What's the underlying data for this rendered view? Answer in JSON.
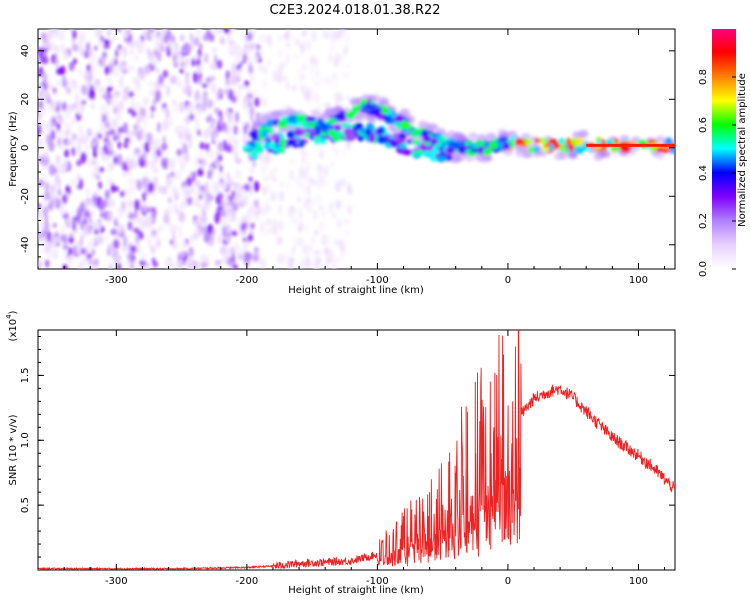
{
  "title": "C2E3.2024.018.01.38.R22",
  "chart_data": [
    {
      "type": "heatmap",
      "xlabel": "Height of straight line (km)",
      "ylabel": "Frequency (Hz)",
      "xlim": [
        -360,
        128
      ],
      "ylim": [
        -50,
        49
      ],
      "x_ticks": [
        "-300",
        "-200",
        "-100",
        "0",
        "100"
      ],
      "y_ticks": [
        "-40",
        "-20",
        "0",
        "20",
        "40"
      ],
      "colorbar": {
        "label": "Normalized spectral amplitude",
        "range": [
          0,
          1
        ],
        "ticks": [
          "0.0",
          "0.2",
          "0.4",
          "0.6",
          "0.8"
        ],
        "colormap": [
          "#ffffff",
          "#e8d0ff",
          "#b080ff",
          "#8000ff",
          "#0000ff",
          "#00ffff",
          "#00ff00",
          "#ffff00",
          "#ff8000",
          "#ff0000",
          "#ff0080"
        ]
      },
      "ridge_track": {
        "x": [
          -195,
          -185,
          -170,
          -155,
          -140,
          -125,
          -110,
          -100,
          -90,
          -80,
          -70,
          -60,
          -50,
          -40,
          -30,
          -20,
          -10,
          0,
          20,
          40,
          60,
          80,
          100,
          128
        ],
        "y": [
          4,
          8,
          10,
          11,
          9,
          14,
          17,
          16,
          13,
          10,
          7,
          4,
          2,
          0,
          0,
          0,
          1,
          2,
          1,
          1,
          1,
          1,
          1,
          1
        ]
      },
      "lower_track": {
        "x": [
          -200,
          -185,
          -170,
          -150,
          -130,
          -115,
          -100,
          -85,
          -70,
          -55,
          -45
        ],
        "y": [
          -1,
          0,
          3,
          5,
          6,
          7,
          6,
          2,
          0,
          -2,
          -3
        ]
      }
    },
    {
      "type": "line",
      "xlabel": "Height of straight line (km)",
      "ylabel": "SNR (10 * v/v)",
      "y_exponent": "(x10",
      "y_exponent_power": "4",
      "y_exponent_close": ")",
      "xlim": [
        -360,
        128
      ],
      "ylim": [
        0,
        1.85
      ],
      "x_ticks": [
        "-300",
        "-200",
        "-100",
        "0",
        "100"
      ],
      "y_ticks": [
        "0.5",
        "1.0",
        "1.5"
      ],
      "series": [
        {
          "color": "#ee2222",
          "x": [
            -360,
            -250,
            -200,
            -180,
            -160,
            -140,
            -120,
            -100,
            -90,
            -80,
            -70,
            -60,
            -50,
            -40,
            -30,
            -20,
            -10,
            0,
            10,
            20,
            30,
            40,
            50,
            60,
            70,
            80,
            90,
            100,
            110,
            120,
            128
          ],
          "y": [
            0.01,
            0.01,
            0.02,
            0.03,
            0.05,
            0.06,
            0.07,
            0.12,
            0.18,
            0.25,
            0.32,
            0.4,
            0.5,
            0.65,
            0.75,
            0.85,
            0.95,
            1.05,
            1.2,
            1.32,
            1.37,
            1.4,
            1.33,
            1.22,
            1.12,
            1.02,
            0.95,
            0.88,
            0.8,
            0.7,
            0.62
          ],
          "spikes": [
            {
              "x": 8,
              "y": 1.85
            },
            {
              "x": -10,
              "y": 1.52
            },
            {
              "x": -25,
              "y": 1.45
            },
            {
              "x": -32,
              "y": 1.26
            },
            {
              "x": -40,
              "y": 0.75
            },
            {
              "x": -60,
              "y": 0.6
            }
          ]
        }
      ]
    }
  ]
}
